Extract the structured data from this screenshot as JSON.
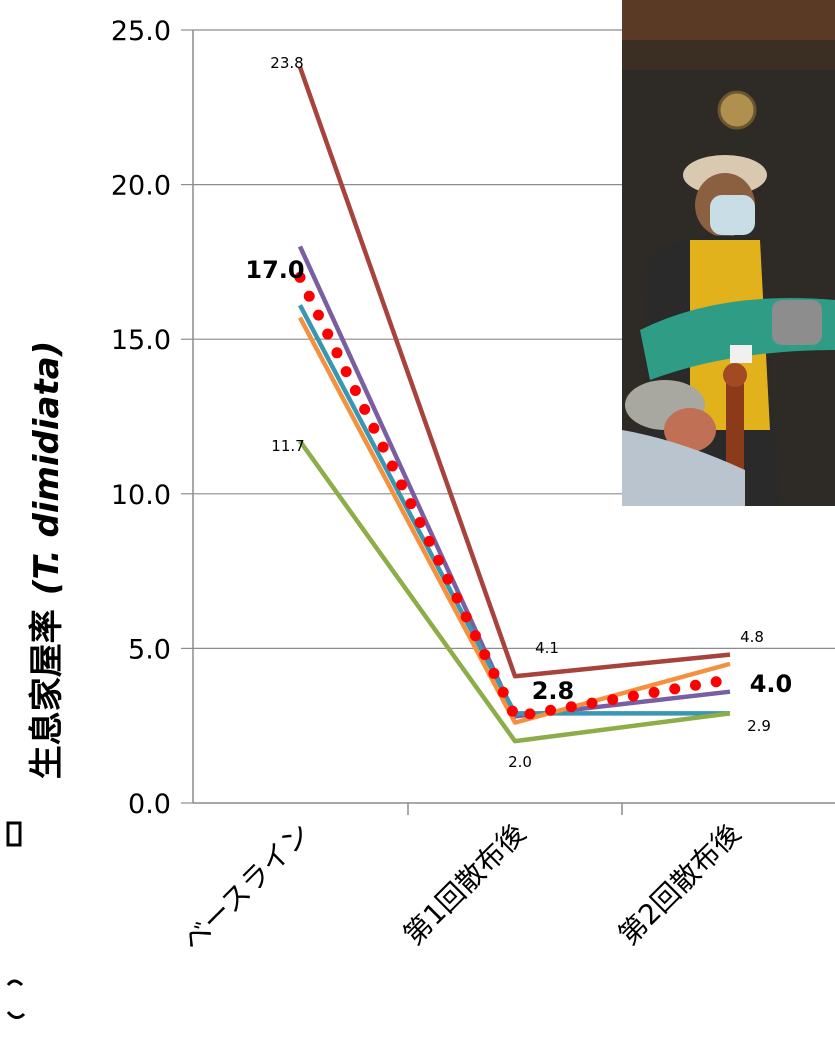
{
  "chart_data": {
    "type": "line",
    "ylabel_main": "生息家屋率",
    "ylabel_italic": "(T. dimidiata)",
    "ylim": [
      0,
      25
    ],
    "yticks": [
      "0.0",
      "5.0",
      "10.0",
      "15.0",
      "20.0",
      "25.0"
    ],
    "categories": [
      "ベースライン",
      "第1回散布後",
      "第2回散布後"
    ],
    "grid": true,
    "series": [
      {
        "color": "#a8423c",
        "values": [
          23.8,
          4.1,
          4.8
        ],
        "labels": [
          "23.8",
          "4.1",
          "4.8"
        ],
        "style": "solid"
      },
      {
        "color": "#7a5ea3",
        "values": [
          18.0,
          2.8,
          3.6
        ],
        "style": "solid"
      },
      {
        "color": "#3a97b4",
        "values": [
          16.1,
          2.9,
          2.9
        ],
        "style": "solid"
      },
      {
        "color": "#f3913f",
        "values": [
          15.7,
          2.6,
          4.5
        ],
        "style": "solid"
      },
      {
        "color": "#8cad48",
        "values": [
          11.7,
          2.0,
          2.9
        ],
        "labels": [
          "11.7",
          "2.0",
          "2.9"
        ],
        "style": "solid"
      },
      {
        "color": "#ff0000",
        "values": [
          17.0,
          2.8,
          4.0
        ],
        "labels": [
          "17.0",
          "2.8",
          "4.0"
        ],
        "style": "dotted",
        "bold_labels": true
      }
    ]
  },
  "photo": {
    "description_icon": "photo-icon"
  }
}
